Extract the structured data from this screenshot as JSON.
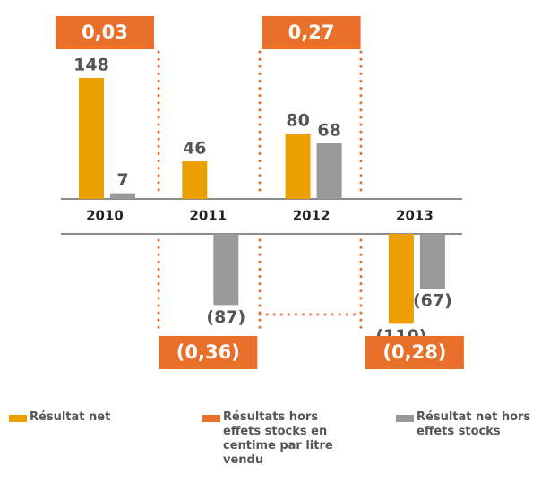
{
  "chart_data": {
    "type": "bar",
    "categories": [
      "2010",
      "2011",
      "2012",
      "2013"
    ],
    "series": [
      {
        "name": "Résultat net",
        "color": "#eba000",
        "values": [
          148,
          46,
          80,
          -110
        ],
        "value_labels": [
          "148",
          "46",
          "80",
          "(110)"
        ]
      },
      {
        "name": "Résultat net hors effets stocks",
        "color": "#999999",
        "values": [
          7,
          -87,
          68,
          -67
        ],
        "value_labels": [
          "7",
          "(87)",
          "68",
          "(67)"
        ]
      }
    ],
    "ratio_series": {
      "name": "Résultats hors effets stocks en centime par litre vendu",
      "color": "#e8702a",
      "values": [
        0.03,
        -0.36,
        0.27,
        -0.28
      ],
      "value_labels": [
        "0,03",
        "(0,36)",
        "0,27",
        "(0,28)"
      ]
    }
  }
}
